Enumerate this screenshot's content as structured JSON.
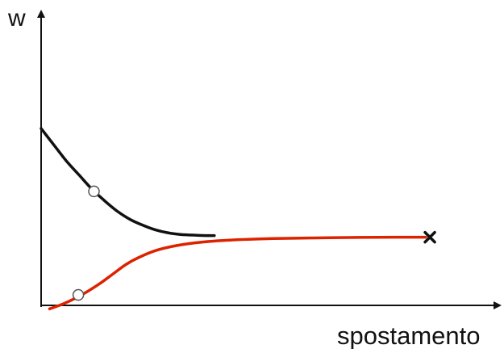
{
  "chart_data": {
    "type": "line",
    "xlabel": "spostamento",
    "ylabel": "w",
    "xlim": [
      0,
      10
    ],
    "ylim": [
      0,
      10
    ],
    "grid": false,
    "legend": "none",
    "ticks": "none",
    "series": [
      {
        "color": "#111111",
        "points": [
          [
            0.0,
            7.6
          ],
          [
            0.3,
            6.9
          ],
          [
            0.6,
            6.2
          ],
          [
            0.9,
            5.6
          ],
          [
            1.2,
            5.0
          ],
          [
            1.5,
            4.5
          ],
          [
            1.8,
            4.05
          ],
          [
            2.1,
            3.7
          ],
          [
            2.4,
            3.45
          ],
          [
            2.7,
            3.25
          ],
          [
            3.0,
            3.12
          ],
          [
            3.3,
            3.05
          ],
          [
            3.6,
            3.02
          ],
          [
            3.9,
            3.0
          ],
          [
            4.1,
            3.0
          ]
        ],
        "marker": {
          "x": 1.25,
          "y": 4.9,
          "style": "open-circle"
        }
      },
      {
        "color": "#dd2200",
        "points": [
          [
            0.2,
            -0.15
          ],
          [
            0.5,
            0.05
          ],
          [
            0.8,
            0.3
          ],
          [
            1.1,
            0.6
          ],
          [
            1.4,
            0.95
          ],
          [
            1.7,
            1.35
          ],
          [
            2.0,
            1.75
          ],
          [
            2.3,
            2.05
          ],
          [
            2.7,
            2.35
          ],
          [
            3.2,
            2.57
          ],
          [
            3.8,
            2.72
          ],
          [
            4.5,
            2.81
          ],
          [
            5.5,
            2.87
          ],
          [
            6.5,
            2.9
          ],
          [
            7.5,
            2.92
          ],
          [
            8.4,
            2.93
          ],
          [
            9.1,
            2.93
          ]
        ],
        "marker": {
          "x": 0.88,
          "y": 0.45,
          "style": "open-circle"
        },
        "end_marker": {
          "x": 9.2,
          "y": 2.93,
          "style": "x"
        }
      }
    ]
  }
}
